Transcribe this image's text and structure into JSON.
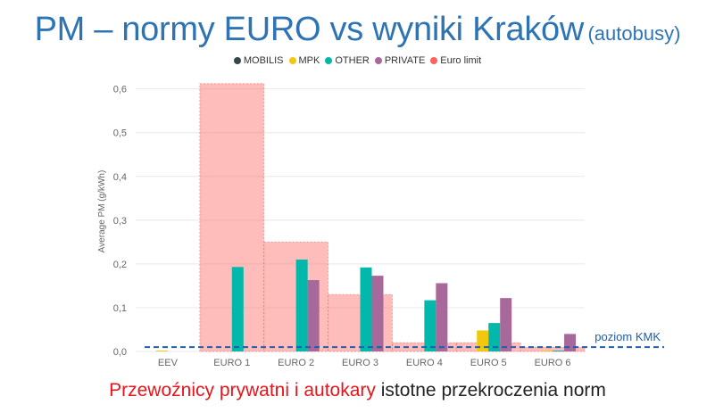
{
  "slide": {
    "title": "PM – normy EURO vs wyniki Kraków",
    "title_suffix": "(autobusy)",
    "caption_highlight": "Przewoźnicy prywatni i autokary",
    "caption_rest": " istotne przekroczenia norm"
  },
  "chart_data": {
    "type": "bar",
    "title": "",
    "xlabel": "",
    "ylabel": "Average PM (g/kWh)",
    "ylim": [
      0,
      0.64
    ],
    "yticks": [
      "0,0",
      "0,1",
      "0,2",
      "0,3",
      "0,4",
      "0,5",
      "0,6"
    ],
    "ytick_values": [
      0,
      0.1,
      0.2,
      0.3,
      0.4,
      0.5,
      0.6
    ],
    "grid": true,
    "legend_position": "top",
    "categories": [
      "EEV",
      "EURO 1",
      "EURO 2",
      "EURO 3",
      "EURO 4",
      "EURO 5",
      "EURO 6"
    ],
    "series": [
      {
        "name": "MOBILIS",
        "color": "#374649",
        "values": [
          null,
          null,
          null,
          null,
          null,
          null,
          null
        ]
      },
      {
        "name": "MPK",
        "color": "#f2c80f",
        "values": [
          0.002,
          null,
          null,
          null,
          null,
          0.048,
          0.002
        ]
      },
      {
        "name": "OTHER",
        "color": "#01b8aa",
        "values": [
          null,
          0.193,
          0.21,
          0.192,
          0.117,
          0.065,
          0.002
        ]
      },
      {
        "name": "PRIVATE",
        "color": "#a66999",
        "values": [
          null,
          null,
          0.163,
          0.173,
          0.156,
          0.122,
          0.04
        ]
      },
      {
        "name": "Euro limit",
        "color": "#fd625e",
        "values": [
          null,
          0.612,
          0.25,
          0.13,
          0.02,
          0.02,
          0.01
        ]
      }
    ],
    "reference_line": {
      "label": "poziom KMK",
      "value": 0.01,
      "color": "#1f5ea8"
    }
  }
}
